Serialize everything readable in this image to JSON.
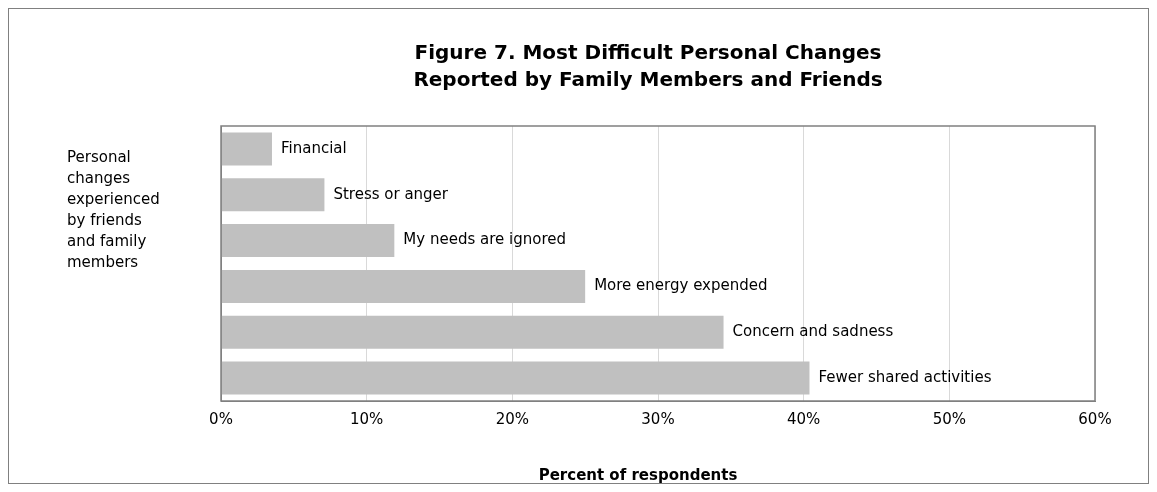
{
  "chart_data": {
    "type": "bar",
    "orientation": "horizontal",
    "title": "Figure 7. Most Difficult Personal Changes\nReported by Family Members and Friends",
    "categories": [
      "Financial",
      "Stress or anger",
      "My needs are ignored",
      "More energy expended",
      "Concern and sadness",
      "Fewer shared activities"
    ],
    "values": [
      3.5,
      7.1,
      11.9,
      25.0,
      34.5,
      40.4
    ],
    "color": "#c0c0c0",
    "xlim": [
      0,
      60
    ],
    "xticks": [
      {
        "value": 0,
        "label": "0%"
      },
      {
        "value": 10,
        "label": "10%"
      },
      {
        "value": 20,
        "label": "20%"
      },
      {
        "value": 30,
        "label": "30%"
      },
      {
        "value": 40,
        "label": "40%"
      },
      {
        "value": 50,
        "label": "50%"
      },
      {
        "value": 60,
        "label": "60%"
      }
    ],
    "xlabel": "Percent of respondents",
    "ylabel": "Personal changes experienced by friends and family members",
    "grid": "x",
    "tick_labels": "x",
    "legend": false
  }
}
